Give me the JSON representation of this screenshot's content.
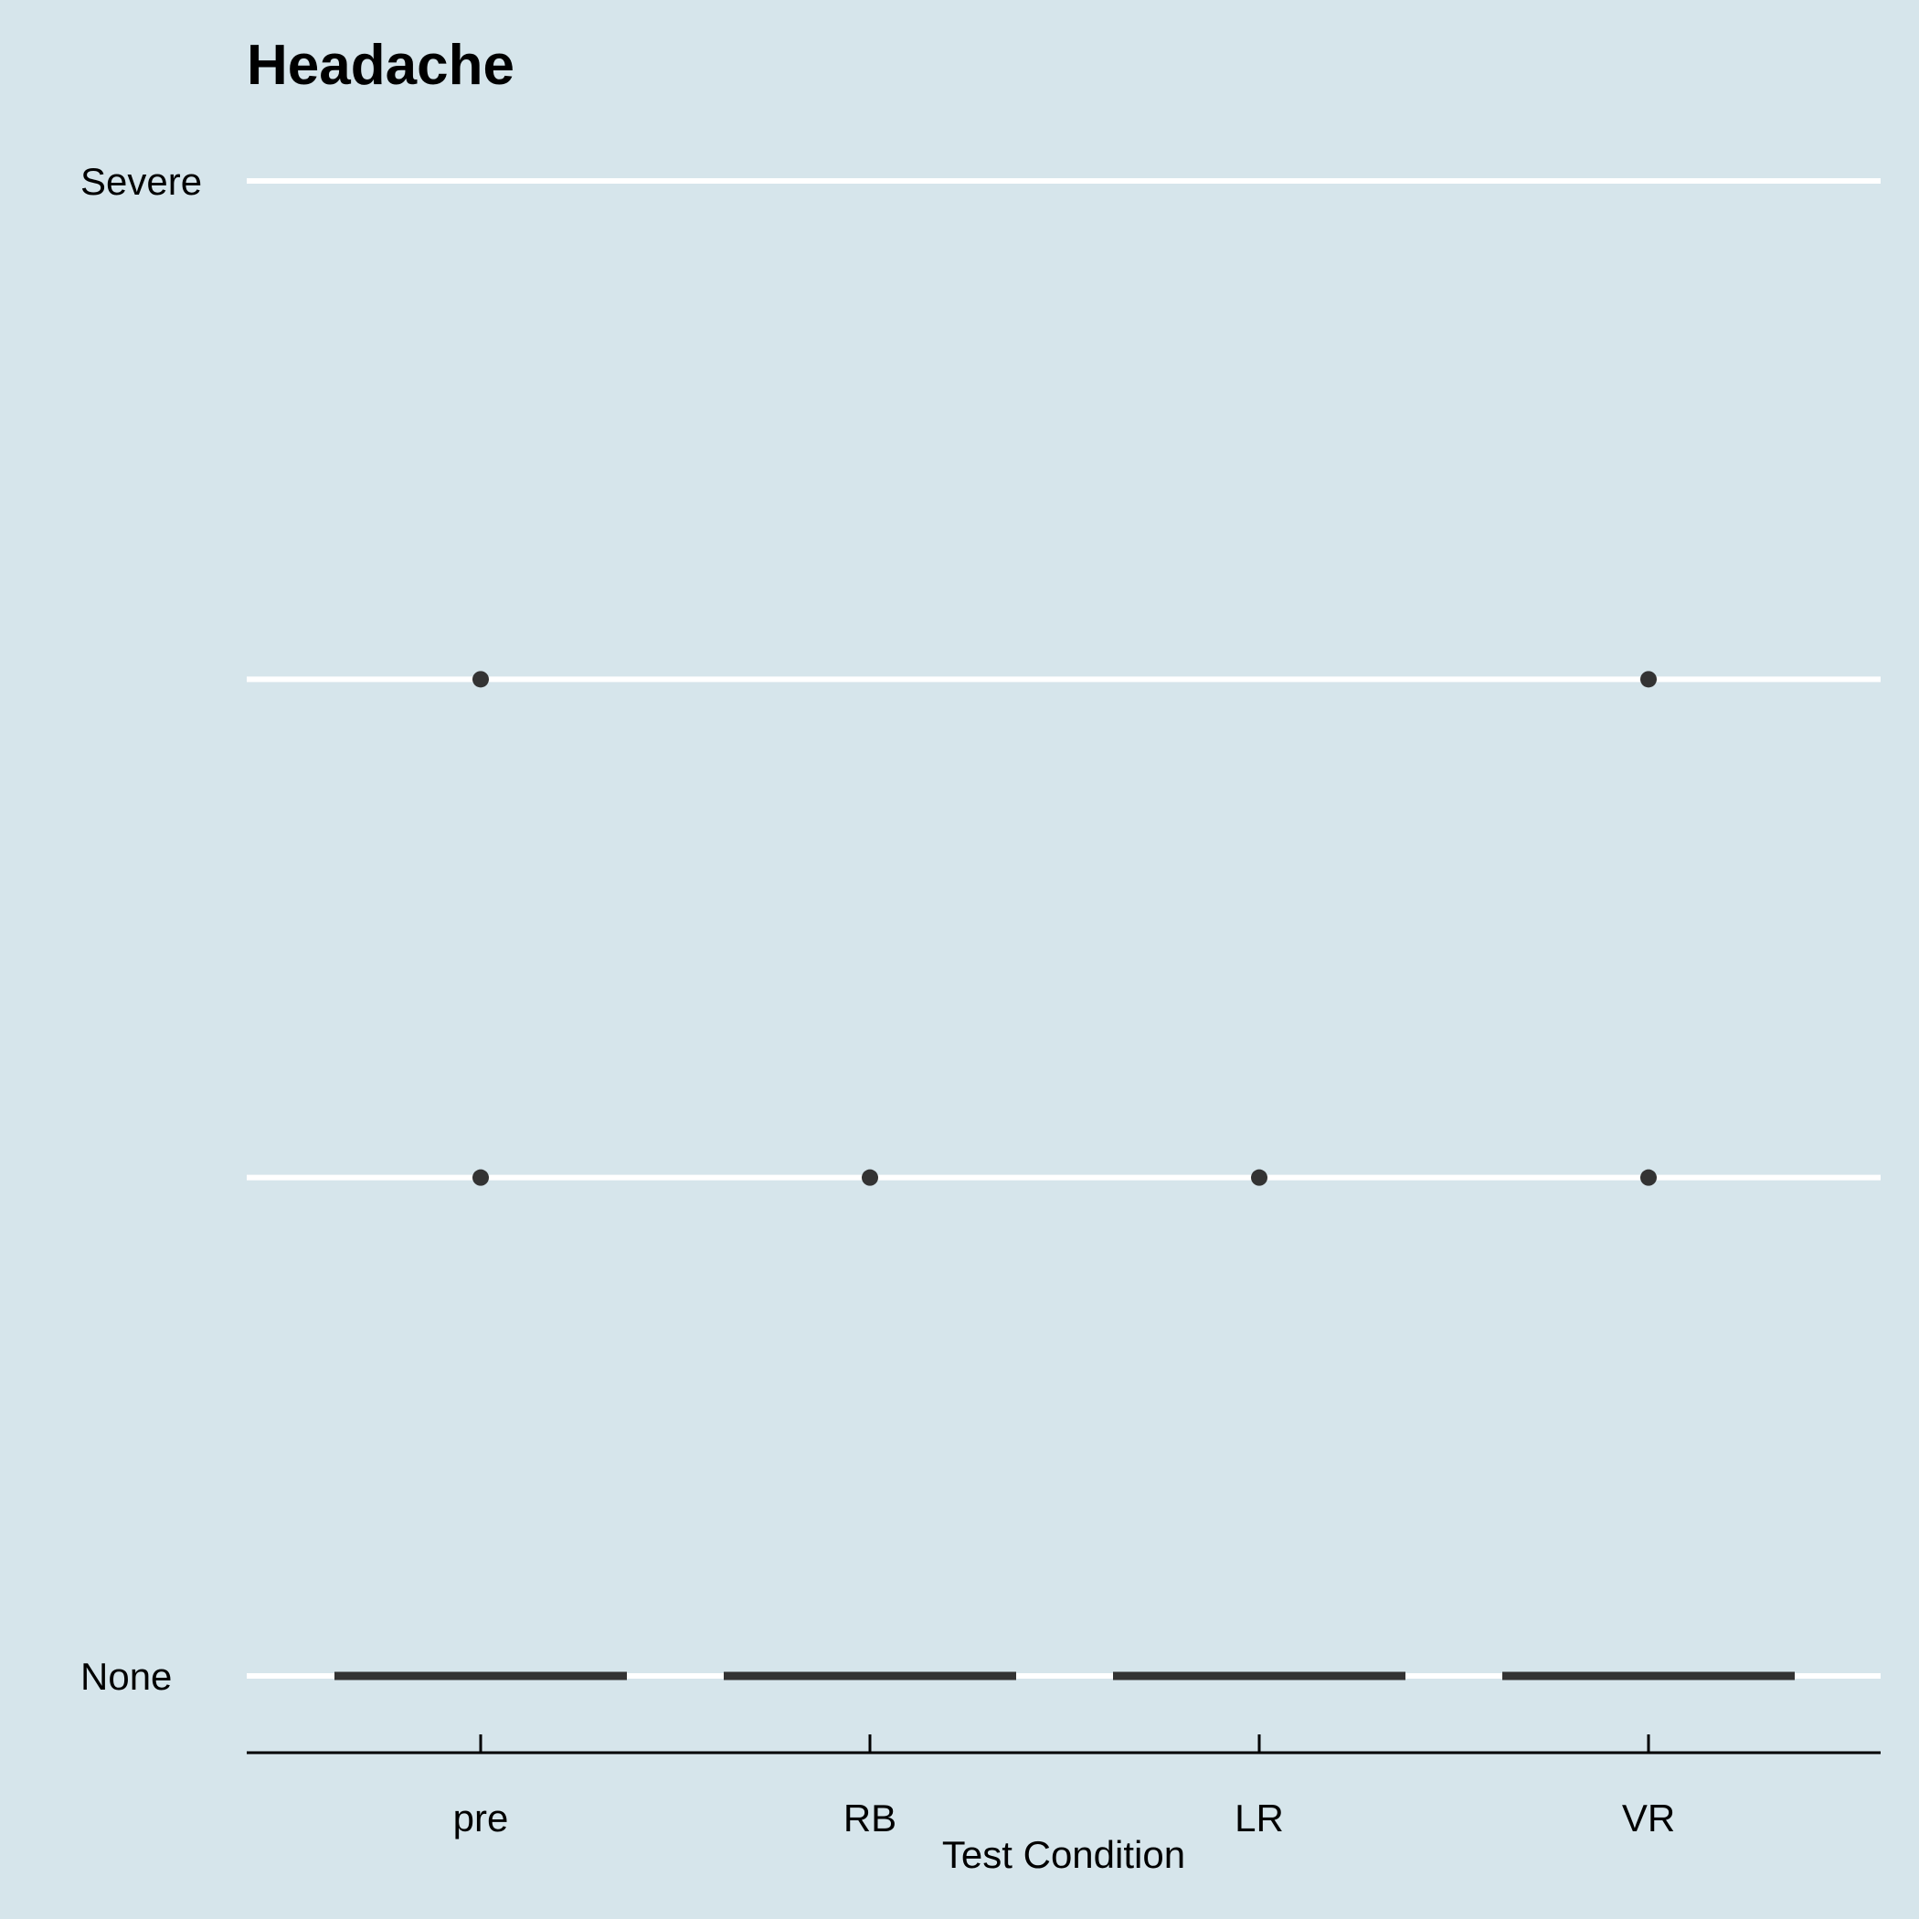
{
  "chart_data": {
    "type": "boxplot",
    "title": "Headache",
    "subtitle": "",
    "xlabel": "Test Condition",
    "ylabel": "",
    "categories": [
      "pre",
      "RB",
      "LR",
      "VR"
    ],
    "y_levels": [
      1,
      2,
      3,
      4
    ],
    "y_tick_labels": [
      "None",
      "",
      "",
      "Severe"
    ],
    "ylim": [
      1,
      4
    ],
    "boxes": [
      {
        "category": "pre",
        "min": 1,
        "q1": 1,
        "median": 1,
        "q3": 1,
        "max": 1,
        "outliers": [
          2,
          3
        ]
      },
      {
        "category": "RB",
        "min": 1,
        "q1": 1,
        "median": 1,
        "q3": 1,
        "max": 1,
        "outliers": [
          2
        ]
      },
      {
        "category": "LR",
        "min": 1,
        "q1": 1,
        "median": 1,
        "q3": 1,
        "max": 1,
        "outliers": [
          2
        ]
      },
      {
        "category": "VR",
        "min": 1,
        "q1": 1,
        "median": 1,
        "q3": 1,
        "max": 1,
        "outliers": [
          2,
          3
        ]
      }
    ],
    "grid": "horizontal major lines only",
    "legend": "none",
    "colors": {
      "background": "#d6e5eb",
      "gridline": "#ffffff",
      "box": "#333333",
      "point": "#333333",
      "axis": "#000000"
    }
  }
}
